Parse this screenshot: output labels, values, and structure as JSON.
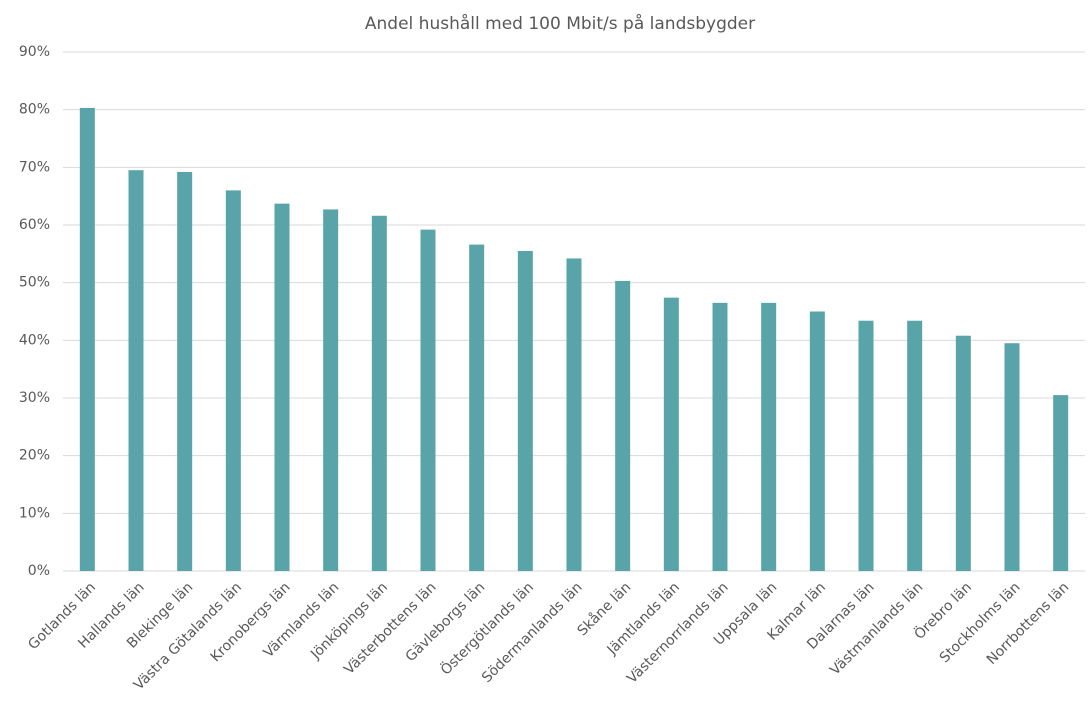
{
  "chart_data": {
    "type": "bar",
    "title": "Andel hushåll med 100 Mbit/s på landsbygder",
    "categories": [
      "Gotlands län",
      "Hallands län",
      "Blekinge län",
      "Västra Götalands län",
      "Kronobergs län",
      "Värmlands län",
      "Jönköpings län",
      "Västerbottens län",
      "Gävleborgs län",
      "Östergötlands län",
      "Södermanlands län",
      "Skåne län",
      "Jämtlands län",
      "Västernorrlands län",
      "Uppsala län",
      "Kalmar län",
      "Dalarnas län",
      "Västmanlands län",
      "Örebro län",
      "Stockholms län",
      "Norrbottens län"
    ],
    "values": [
      80.3,
      69.5,
      69.2,
      66,
      63.7,
      62.7,
      61.6,
      59.2,
      56.6,
      55.5,
      54.2,
      50.3,
      47.4,
      46.5,
      46.5,
      45,
      43.4,
      43.4,
      40.8,
      39.5,
      30.5
    ],
    "color": "#58a4a8",
    "ylim": [
      0,
      90
    ],
    "yticks": [
      {
        "value": 0,
        "label": "0%"
      },
      {
        "value": 10,
        "label": "10%"
      },
      {
        "value": 20,
        "label": "20%"
      },
      {
        "value": 30,
        "label": "30%"
      },
      {
        "value": 40,
        "label": "40%"
      },
      {
        "value": 50,
        "label": "50%"
      },
      {
        "value": 60,
        "label": "60%"
      },
      {
        "value": 70,
        "label": "70%"
      },
      {
        "value": 80,
        "label": "80%"
      },
      {
        "value": 90,
        "label": "90%"
      }
    ],
    "grid": true
  }
}
